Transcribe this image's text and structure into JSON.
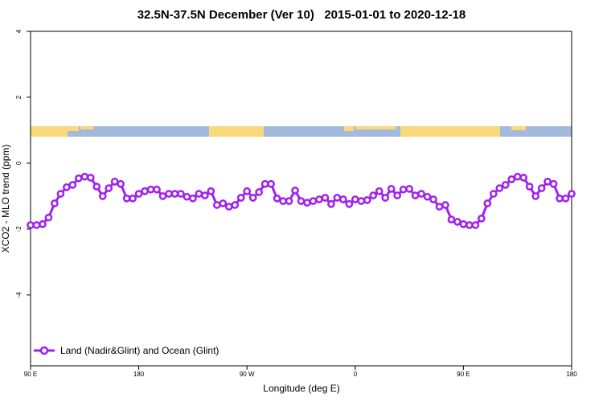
{
  "chart_data": {
    "type": "line",
    "title": "32.5N-37.5N December (Ver 10)   2015-01-01 to 2020-12-18",
    "x_label": "Longitude (deg E)",
    "y_label": "XCO2 - MLO trend (ppm)",
    "xlim": [
      90,
      540
    ],
    "xticks": [
      {
        "value": 90,
        "label": "90 E"
      },
      180,
      {
        "value": 270,
        "label": "90 W"
      },
      {
        "value": 360,
        "label": "0"
      },
      {
        "value": 450,
        "label": "90 E"
      },
      {
        "value": 540,
        "label": "180"
      }
    ],
    "ylim": [
      -6.15,
      4
    ],
    "yticks": [
      4,
      2,
      0,
      -2,
      -4
    ],
    "legend": "lower left",
    "x": [
      90,
      95,
      100,
      105,
      110,
      115,
      120,
      125,
      130,
      135,
      140,
      145,
      150,
      155,
      160,
      165,
      170,
      175,
      180,
      185,
      190,
      195,
      200,
      205,
      210,
      215,
      220,
      225,
      230,
      235,
      240,
      245,
      250,
      255,
      260,
      265,
      270,
      275,
      280,
      285,
      290,
      295,
      300,
      305,
      310,
      315,
      320,
      325,
      330,
      335,
      340,
      345,
      350,
      355,
      360,
      365,
      370,
      375,
      380,
      385,
      390,
      395,
      400,
      405,
      410,
      415,
      420,
      425,
      430,
      435,
      440,
      445,
      450,
      455,
      460,
      465,
      470,
      475,
      480,
      485,
      490,
      495,
      500,
      505,
      510,
      515,
      520,
      525,
      530,
      535,
      540
    ],
    "series": [
      {
        "name": "Land (Nadir&Glint) and Ocean (Glint)",
        "color": "#a020f0",
        "values": [
          -1.88,
          -1.88,
          -1.85,
          -1.65,
          -1.22,
          -0.93,
          -0.73,
          -0.66,
          -0.46,
          -0.41,
          -0.44,
          -0.71,
          -1.0,
          -0.76,
          -0.56,
          -0.63,
          -1.07,
          -1.07,
          -0.93,
          -0.85,
          -0.8,
          -0.8,
          -1.0,
          -0.93,
          -0.93,
          -0.93,
          -1.02,
          -1.07,
          -0.93,
          -0.98,
          -0.85,
          -1.27,
          -1.22,
          -1.32,
          -1.27,
          -1.05,
          -0.85,
          -1.05,
          -0.88,
          -0.63,
          -0.63,
          -1.07,
          -1.15,
          -1.15,
          -0.83,
          -1.15,
          -1.2,
          -1.15,
          -1.1,
          -1.05,
          -1.24,
          -1.05,
          -1.1,
          -1.24,
          -1.1,
          -1.15,
          -1.12,
          -0.98,
          -0.85,
          -1.05,
          -0.78,
          -0.98,
          -0.8,
          -0.78,
          -0.98,
          -0.93,
          -1.02,
          -1.1,
          -1.32,
          -1.27,
          -1.71,
          -1.78,
          -1.85,
          -1.88,
          -1.88,
          -1.68,
          -1.22,
          -0.93,
          -0.76,
          -0.66,
          -0.49,
          -0.41,
          -0.44,
          -0.71,
          -1.0,
          -0.76,
          -0.56,
          -0.63,
          -1.07,
          -1.07,
          -0.93
        ]
      }
    ]
  }
}
